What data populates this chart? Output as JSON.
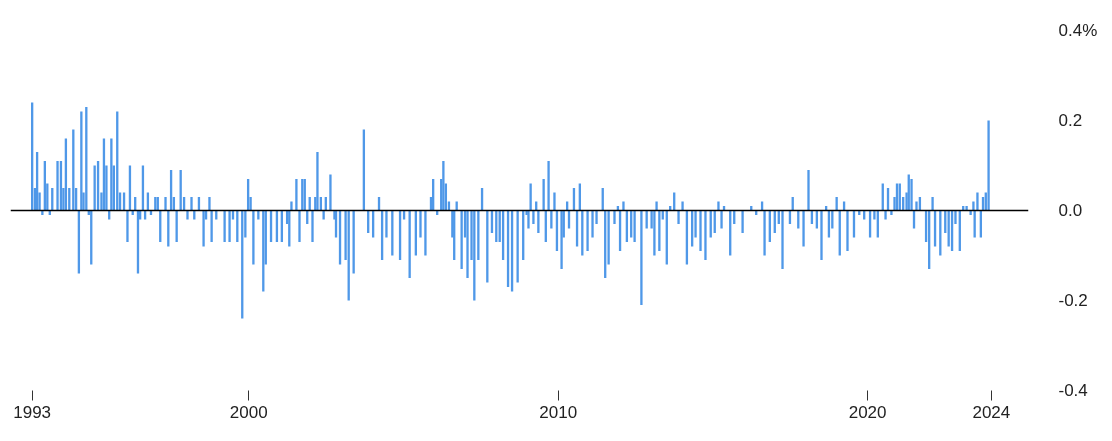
{
  "chart_data": {
    "type": "bar",
    "x": [
      1993.0,
      1993.09,
      1993.16,
      1993.24,
      1993.33,
      1993.41,
      1993.49,
      1993.57,
      1993.65,
      1993.82,
      1993.93,
      1994.01,
      1994.09,
      1994.2,
      1994.33,
      1994.42,
      1994.51,
      1994.59,
      1994.66,
      1994.75,
      1994.83,
      1994.91,
      1995.02,
      1995.13,
      1995.24,
      1995.32,
      1995.4,
      1995.49,
      1995.56,
      1995.64,
      1995.75,
      1995.84,
      1995.97,
      1996.08,
      1996.16,
      1996.25,
      1996.33,
      1996.42,
      1996.49,
      1996.58,
      1996.65,
      1996.74,
      1996.84,
      1996.98,
      1997.06,
      1997.14,
      1997.31,
      1997.4,
      1997.49,
      1997.58,
      1997.67,
      1997.8,
      1997.91,
      1998.02,
      1998.15,
      1998.24,
      1998.39,
      1998.54,
      1998.62,
      1998.73,
      1998.8,
      1998.95,
      1999.22,
      1999.38,
      1999.49,
      1999.63,
      1999.79,
      1999.89,
      1999.98,
      2000.06,
      2000.15,
      2000.31,
      2000.47,
      2000.55,
      2000.72,
      2000.91,
      2001.07,
      2001.24,
      2001.31,
      2001.38,
      2001.54,
      2001.64,
      2001.73,
      2001.81,
      2001.89,
      2001.97,
      2002.06,
      2002.15,
      2002.22,
      2002.33,
      2002.42,
      2002.49,
      2002.64,
      2002.77,
      2002.82,
      2002.95,
      2003.13,
      2003.23,
      2003.39,
      2003.72,
      2003.86,
      2004.02,
      2004.21,
      2004.31,
      2004.45,
      2004.64,
      2004.89,
      2005.02,
      2005.2,
      2005.4,
      2005.55,
      2005.71,
      2005.89,
      2005.96,
      2006.09,
      2006.22,
      2006.29,
      2006.37,
      2006.47,
      2006.58,
      2006.64,
      2006.72,
      2006.88,
      2006.99,
      2007.07,
      2007.2,
      2007.29,
      2007.42,
      2007.54,
      2007.71,
      2007.86,
      2008.0,
      2008.11,
      2008.22,
      2008.38,
      2008.51,
      2008.69,
      2008.87,
      2008.98,
      2009.04,
      2009.11,
      2009.2,
      2009.29,
      2009.36,
      2009.53,
      2009.6,
      2009.69,
      2009.78,
      2009.88,
      2009.96,
      2010.11,
      2010.18,
      2010.29,
      2010.35,
      2010.51,
      2010.61,
      2010.7,
      2010.78,
      2010.95,
      2011.11,
      2011.24,
      2011.44,
      2011.52,
      2011.63,
      2011.82,
      2011.93,
      2012.0,
      2012.11,
      2012.22,
      2012.36,
      2012.47,
      2012.69,
      2012.86,
      2013.02,
      2013.11,
      2013.18,
      2013.27,
      2013.38,
      2013.51,
      2013.62,
      2013.75,
      2013.89,
      2014.02,
      2014.16,
      2014.33,
      2014.44,
      2014.6,
      2014.76,
      2014.93,
      2015.06,
      2015.18,
      2015.28,
      2015.36,
      2015.56,
      2015.69,
      2015.96,
      2016.24,
      2016.4,
      2016.59,
      2016.67,
      2016.84,
      2017.0,
      2017.13,
      2017.25,
      2017.49,
      2017.58,
      2017.76,
      2017.93,
      2018.09,
      2018.2,
      2018.36,
      2018.51,
      2018.66,
      2018.75,
      2018.86,
      2019.0,
      2019.1,
      2019.24,
      2019.35,
      2019.56,
      2019.73,
      2019.89,
      2020.08,
      2020.22,
      2020.33,
      2020.49,
      2020.58,
      2020.66,
      2020.77,
      2020.87,
      2020.95,
      2021.04,
      2021.15,
      2021.26,
      2021.33,
      2021.42,
      2021.5,
      2021.58,
      2021.69,
      2021.89,
      2021.99,
      2022.1,
      2022.18,
      2022.35,
      2022.51,
      2022.62,
      2022.73,
      2022.84,
      2022.98,
      2023.09,
      2023.2,
      2023.33,
      2023.42,
      2023.46,
      2023.55,
      2023.66,
      2023.73,
      2023.82,
      2023.91
    ],
    "series": [
      {
        "color": "#4f98e8",
        "values": [
          0.24,
          0.05,
          0.13,
          0.04,
          -0.01,
          0.11,
          0.06,
          -0.01,
          0.05,
          0.11,
          0.11,
          0.05,
          0.16,
          0.05,
          0.18,
          0.05,
          -0.14,
          0.22,
          0.04,
          0.23,
          -0.01,
          -0.12,
          0.1,
          0.11,
          0.04,
          0.16,
          0.1,
          -0.02,
          0.16,
          0.1,
          0.22,
          0.04,
          0.04,
          -0.07,
          0.1,
          -0.01,
          0.03,
          -0.14,
          -0.02,
          0.1,
          -0.02,
          0.04,
          -0.01,
          0.03,
          0.03,
          -0.07,
          0.03,
          -0.08,
          0.09,
          0.03,
          -0.07,
          0.09,
          0.03,
          -0.02,
          0.03,
          -0.02,
          0.03,
          -0.08,
          -0.02,
          0.03,
          -0.07,
          -0.02,
          -0.07,
          -0.07,
          -0.02,
          -0.07,
          -0.24,
          -0.06,
          0.07,
          0.03,
          -0.12,
          -0.02,
          -0.18,
          -0.12,
          -0.07,
          -0.07,
          -0.07,
          -0.03,
          -0.08,
          0.02,
          0.07,
          -0.07,
          0.07,
          0.07,
          -0.03,
          0.03,
          -0.07,
          0.03,
          0.13,
          0.03,
          -0.02,
          0.03,
          0.08,
          -0.02,
          -0.06,
          -0.12,
          -0.11,
          -0.2,
          -0.14,
          0.18,
          -0.05,
          -0.06,
          0.03,
          -0.11,
          -0.06,
          -0.1,
          -0.11,
          -0.02,
          -0.15,
          -0.1,
          -0.06,
          -0.1,
          0.03,
          0.07,
          -0.01,
          0.07,
          0.11,
          0.06,
          0.02,
          -0.06,
          -0.11,
          0.02,
          -0.13,
          -0.06,
          -0.15,
          -0.11,
          -0.2,
          -0.11,
          0.05,
          -0.16,
          -0.05,
          -0.07,
          -0.07,
          -0.11,
          -0.17,
          -0.18,
          -0.16,
          -0.11,
          -0.01,
          -0.04,
          0.06,
          -0.03,
          0.02,
          -0.05,
          0.07,
          -0.07,
          0.11,
          -0.04,
          0.04,
          -0.09,
          -0.13,
          -0.06,
          0.02,
          -0.04,
          0.05,
          -0.08,
          0.06,
          -0.1,
          -0.09,
          -0.06,
          -0.03,
          0.05,
          -0.15,
          -0.12,
          -0.03,
          0.01,
          -0.09,
          0.02,
          -0.07,
          -0.06,
          -0.07,
          -0.21,
          -0.04,
          -0.04,
          -0.1,
          0.02,
          -0.09,
          -0.02,
          -0.12,
          0.01,
          0.04,
          -0.03,
          0.02,
          -0.12,
          -0.08,
          -0.06,
          -0.09,
          -0.11,
          -0.06,
          -0.05,
          0.02,
          -0.04,
          0.01,
          -0.1,
          -0.03,
          -0.05,
          0.01,
          -0.01,
          0.02,
          -0.1,
          -0.07,
          -0.05,
          -0.03,
          -0.13,
          -0.03,
          0.03,
          -0.04,
          -0.08,
          0.09,
          -0.03,
          -0.04,
          -0.11,
          0.01,
          -0.06,
          -0.04,
          0.03,
          -0.1,
          0.02,
          -0.09,
          -0.06,
          -0.01,
          -0.02,
          -0.06,
          -0.02,
          -0.06,
          0.06,
          -0.02,
          0.05,
          -0.01,
          0.03,
          0.06,
          0.06,
          0.03,
          0.04,
          0.08,
          0.07,
          -0.04,
          0.02,
          0.03,
          -0.07,
          -0.13,
          0.03,
          -0.08,
          -0.1,
          -0.05,
          -0.08,
          -0.09,
          -0.03,
          -0.09,
          0.01,
          0.01,
          -0.01,
          0.02,
          -0.06,
          0.04,
          -0.06,
          0.03,
          0.04,
          0.2
        ]
      }
    ],
    "xlim": [
      1992.3,
      2025.2
    ],
    "xticks": [
      1993,
      2000,
      2010,
      2020,
      2024
    ],
    "ylim": [
      -0.4,
      0.4
    ],
    "yticks": [
      {
        "value": 0.4,
        "label": "0.4%"
      },
      {
        "value": 0.2,
        "label": "0.2"
      },
      {
        "value": 0.0,
        "label": "0.0"
      },
      {
        "value": -0.2,
        "label": "-0.2"
      },
      {
        "value": -0.4,
        "label": "-0.4"
      }
    ],
    "ref_lines": [
      {
        "axis": "y",
        "value": 0,
        "color": "#000000"
      }
    ]
  }
}
